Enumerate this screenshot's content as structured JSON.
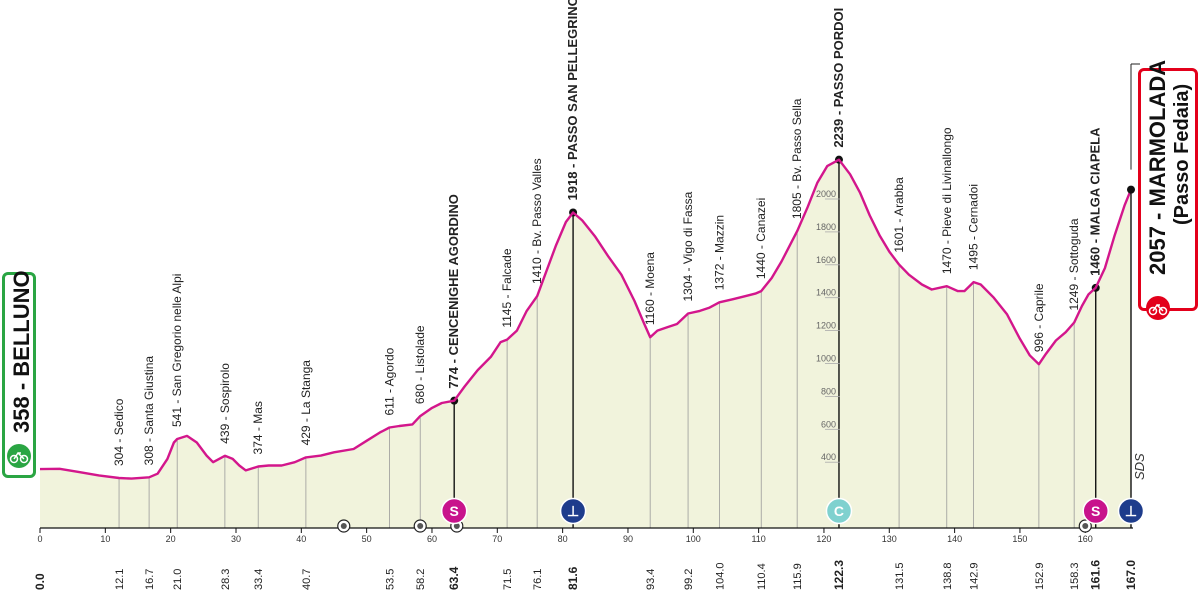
{
  "chart_data": {
    "type": "area",
    "xlabel": "",
    "ylabel": "",
    "xlim": [
      0,
      167
    ],
    "ylim": [
      0,
      2300
    ],
    "km_ticks": [
      0,
      10,
      20,
      30,
      40,
      50,
      60,
      70,
      80,
      90,
      100,
      110,
      120,
      130,
      140,
      150,
      160
    ],
    "alt_ticks": [
      400,
      600,
      800,
      1000,
      1200,
      1400,
      1600,
      1800,
      2000
    ],
    "profile": [
      [
        0,
        358
      ],
      [
        3,
        360
      ],
      [
        6,
        340
      ],
      [
        9,
        320
      ],
      [
        12.1,
        304
      ],
      [
        14,
        300
      ],
      [
        16.7,
        308
      ],
      [
        18,
        330
      ],
      [
        19.5,
        420
      ],
      [
        20.5,
        520
      ],
      [
        21,
        541
      ],
      [
        22.5,
        560
      ],
      [
        24,
        520
      ],
      [
        25.5,
        440
      ],
      [
        26.5,
        400
      ],
      [
        28.3,
        439
      ],
      [
        29.5,
        420
      ],
      [
        30.5,
        380
      ],
      [
        31.5,
        350
      ],
      [
        33.4,
        374
      ],
      [
        35,
        380
      ],
      [
        37,
        380
      ],
      [
        39,
        400
      ],
      [
        40.7,
        429
      ],
      [
        43,
        440
      ],
      [
        45,
        460
      ],
      [
        48,
        480
      ],
      [
        50,
        530
      ],
      [
        52,
        580
      ],
      [
        53.5,
        611
      ],
      [
        55,
        620
      ],
      [
        57,
        630
      ],
      [
        58.2,
        680
      ],
      [
        60,
        730
      ],
      [
        61.5,
        760
      ],
      [
        63.4,
        774
      ],
      [
        65,
        860
      ],
      [
        67,
        960
      ],
      [
        69,
        1040
      ],
      [
        70.5,
        1130
      ],
      [
        71.5,
        1145
      ],
      [
        73,
        1200
      ],
      [
        74.5,
        1320
      ],
      [
        76.1,
        1410
      ],
      [
        77.5,
        1560
      ],
      [
        79,
        1720
      ],
      [
        80.5,
        1860
      ],
      [
        81.6,
        1918
      ],
      [
        83,
        1870
      ],
      [
        85,
        1770
      ],
      [
        87,
        1650
      ],
      [
        89,
        1540
      ],
      [
        91,
        1380
      ],
      [
        92.5,
        1240
      ],
      [
        93.4,
        1160
      ],
      [
        94.5,
        1200
      ],
      [
        96,
        1220
      ],
      [
        97.5,
        1240
      ],
      [
        99.2,
        1304
      ],
      [
        101,
        1320
      ],
      [
        102.5,
        1340
      ],
      [
        104,
        1372
      ],
      [
        106,
        1390
      ],
      [
        108,
        1410
      ],
      [
        109.5,
        1425
      ],
      [
        110.4,
        1440
      ],
      [
        112,
        1520
      ],
      [
        113.5,
        1620
      ],
      [
        115.9,
        1805
      ],
      [
        117.5,
        1950
      ],
      [
        119,
        2100
      ],
      [
        120.5,
        2200
      ],
      [
        122.3,
        2239
      ],
      [
        124,
        2150
      ],
      [
        125.5,
        2040
      ],
      [
        127,
        1900
      ],
      [
        128.5,
        1780
      ],
      [
        130,
        1680
      ],
      [
        131.5,
        1601
      ],
      [
        133,
        1540
      ],
      [
        135,
        1480
      ],
      [
        136.5,
        1450
      ],
      [
        138.8,
        1470
      ],
      [
        140.5,
        1440
      ],
      [
        141.5,
        1440
      ],
      [
        142.9,
        1495
      ],
      [
        144,
        1480
      ],
      [
        146,
        1400
      ],
      [
        148,
        1300
      ],
      [
        150,
        1150
      ],
      [
        151.5,
        1050
      ],
      [
        152.9,
        996
      ],
      [
        154,
        1060
      ],
      [
        155.5,
        1140
      ],
      [
        157,
        1190
      ],
      [
        158.3,
        1249
      ],
      [
        159.5,
        1350
      ],
      [
        160.5,
        1420
      ],
      [
        161.6,
        1460
      ],
      [
        163,
        1580
      ],
      [
        164.5,
        1780
      ],
      [
        166,
        1960
      ],
      [
        167,
        2057
      ]
    ],
    "bottom_km_labels": [
      "0.0",
      "12.1",
      "16.7",
      "21.0",
      "28.3",
      "33.4",
      "40.7",
      "53.5",
      "58.2",
      "63.4",
      "71.5",
      "76.1",
      "81.6",
      "93.4",
      "99.2",
      "104.0",
      "110.4",
      "115.9",
      "122.3",
      "131.5",
      "138.8",
      "142.9",
      "152.9",
      "158.3",
      "161.6",
      "167.0"
    ],
    "bottom_km_values": [
      0,
      12.1,
      16.7,
      21.0,
      28.3,
      33.4,
      40.7,
      53.5,
      58.2,
      63.4,
      71.5,
      76.1,
      81.6,
      93.4,
      99.2,
      104.0,
      110.4,
      115.9,
      122.3,
      131.5,
      138.8,
      142.9,
      152.9,
      158.3,
      161.6,
      167.0
    ],
    "bottom_km_bold": [
      true,
      false,
      false,
      false,
      false,
      false,
      false,
      false,
      false,
      true,
      false,
      false,
      true,
      false,
      false,
      false,
      false,
      false,
      true,
      false,
      false,
      false,
      false,
      false,
      true,
      true
    ],
    "waypoints": [
      {
        "km": 12.1,
        "label": "304 - Sedico",
        "bold": false
      },
      {
        "km": 16.7,
        "label": "308 - Santa Giustina",
        "bold": false
      },
      {
        "km": 21.0,
        "label": "541 - San Gregorio nelle Alpi",
        "bold": false
      },
      {
        "km": 28.3,
        "label": "439 - Sospirolo",
        "bold": false
      },
      {
        "km": 33.4,
        "label": "374 - Mas",
        "bold": false
      },
      {
        "km": 40.7,
        "label": "429 - La Stanga",
        "bold": false
      },
      {
        "km": 53.5,
        "label": "611 - Agordo",
        "bold": false
      },
      {
        "km": 58.2,
        "label": "680 - Listolade",
        "bold": false
      },
      {
        "km": 63.4,
        "label": "774 - CENCENIGHE AGORDINO",
        "bold": true
      },
      {
        "km": 71.5,
        "label": "1145 - Falcade",
        "bold": false
      },
      {
        "km": 76.1,
        "label": "1410 - Bv. Passo Valles",
        "bold": false
      },
      {
        "km": 81.6,
        "label": "1918 - PASSO SAN PELLEGRINO",
        "bold": true
      },
      {
        "km": 93.4,
        "label": "1160 - Moena",
        "bold": false
      },
      {
        "km": 99.2,
        "label": "1304 - Vigo di Fassa",
        "bold": false
      },
      {
        "km": 104.0,
        "label": "1372 - Mazzin",
        "bold": false
      },
      {
        "km": 110.4,
        "label": "1440 - Canazei",
        "bold": false
      },
      {
        "km": 115.9,
        "label": "1805 - Bv. Passo Sella",
        "bold": false
      },
      {
        "km": 122.3,
        "label": "2239 - PASSO PORDOI",
        "bold": true
      },
      {
        "km": 131.5,
        "label": "1601 - Arabba",
        "bold": false
      },
      {
        "km": 138.8,
        "label": "1470 - Pieve di Livinallongo",
        "bold": false
      },
      {
        "km": 142.9,
        "label": "1495 - Cernadoi",
        "bold": false
      },
      {
        "km": 152.9,
        "label": "996 - Caprile",
        "bold": false
      },
      {
        "km": 158.3,
        "label": "1249 - Sottoguda",
        "bold": false
      },
      {
        "km": 161.6,
        "label": "1460 - MALGA CIAPELA",
        "bold": true
      }
    ],
    "markers": [
      {
        "km": 63.4,
        "symbol": "S",
        "color": "#c8138c"
      },
      {
        "km": 81.6,
        "symbol": "⊥",
        "color": "#1e3c8c"
      },
      {
        "km": 122.3,
        "symbol": "C",
        "color": "#7fd1cf"
      },
      {
        "km": 161.6,
        "symbol": "S",
        "color": "#c8138c"
      },
      {
        "km": 167.0,
        "symbol": "⊥",
        "color": "#1e3c8c"
      }
    ],
    "small_markers_km": [
      46.5,
      58.2,
      63.8,
      160.0
    ],
    "colors": {
      "line": "#d3168c",
      "fill": "#f1f3dc",
      "green": "#2aa543",
      "red": "#e3001b"
    }
  },
  "start": {
    "label": "358 - BELLUNO"
  },
  "finish": {
    "label_1": "2057 - MARMOLADA",
    "label_2": "(Passo Fedaia)"
  },
  "sds": "SDS"
}
